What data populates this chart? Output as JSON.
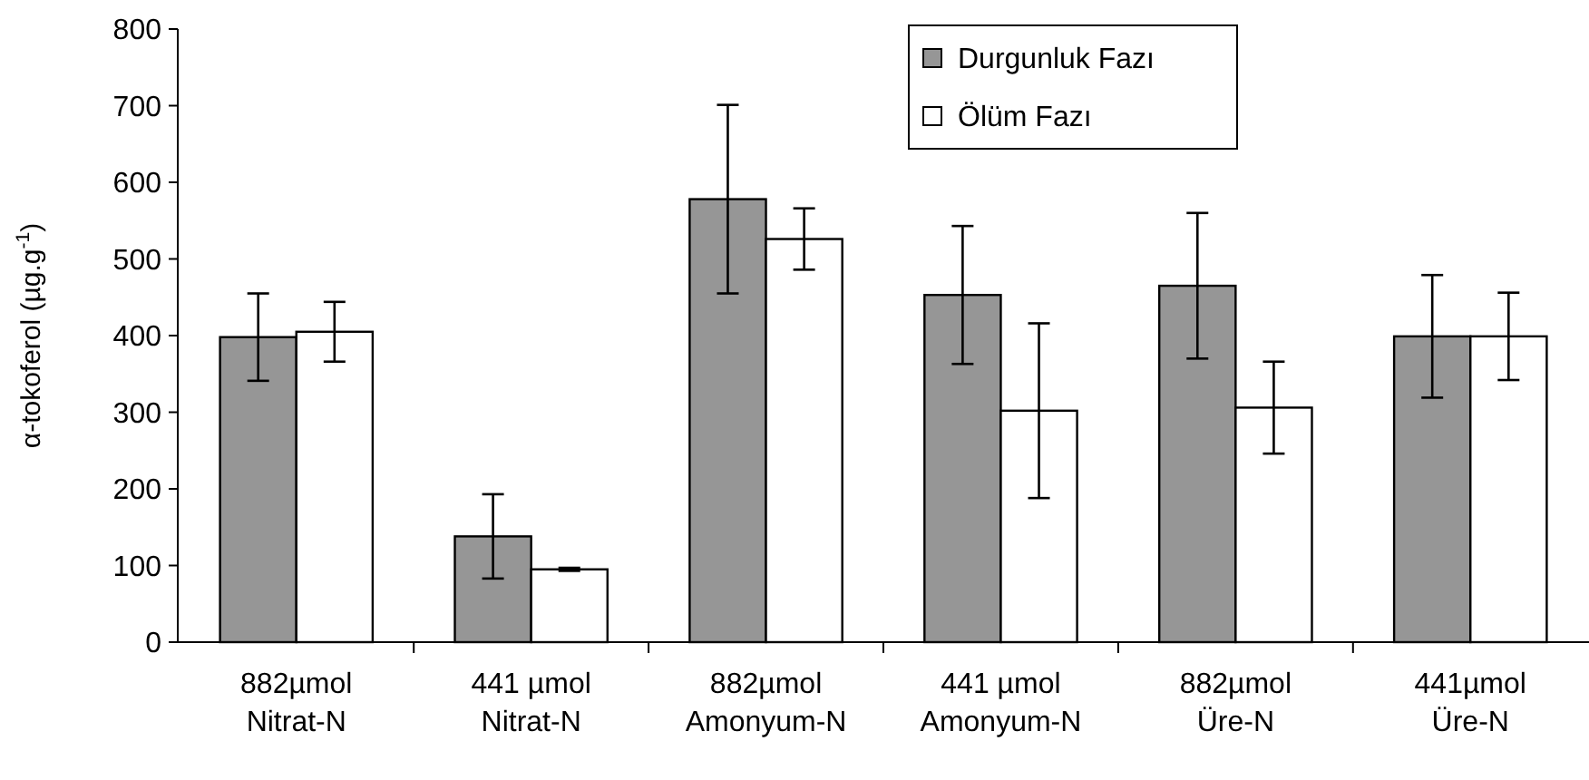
{
  "chart_data": {
    "type": "bar",
    "ylabel": "α-tokoferol (µg.g$^{-1}$)",
    "categories": [
      "882µmol\nNitrat-N",
      "441 µmol\nNitrat-N",
      "882µmol\nAmonyum-N",
      "441 µmol\nAmonyum-N",
      "882µmol\nÜre-N",
      "441µmol\nÜre-N"
    ],
    "series": [
      {
        "name": "Durgunluk Fazı",
        "color": "#969696",
        "values": [
          398,
          138,
          578,
          453,
          465,
          399
        ],
        "errors": [
          57,
          55,
          123,
          90,
          95,
          80
        ]
      },
      {
        "name": "Ölüm Fazı",
        "color": "#ffffff",
        "values": [
          405,
          95,
          526,
          302,
          306,
          399
        ],
        "errors": [
          39,
          2,
          40,
          114,
          60,
          57
        ]
      }
    ],
    "ylim": [
      0,
      800
    ],
    "yticks": [
      0,
      100,
      200,
      300,
      400,
      500,
      600,
      700,
      800
    ],
    "grid": false,
    "legend": "top right"
  }
}
